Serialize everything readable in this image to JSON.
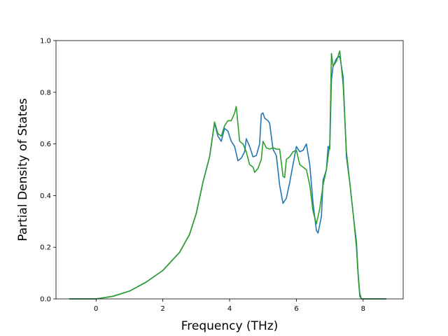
{
  "chart_data": {
    "type": "line",
    "title": "",
    "xlabel": "Frequency (THz)",
    "ylabel": "Partial Density of States",
    "xlim": [
      -1.2,
      9.2
    ],
    "ylim": [
      0.0,
      1.0
    ],
    "xticks": [
      0,
      2,
      4,
      6,
      8
    ],
    "yticks": [
      0.0,
      0.2,
      0.4,
      0.6,
      0.8,
      1.0
    ],
    "xtick_labels": [
      "0",
      "2",
      "4",
      "6",
      "8"
    ],
    "ytick_labels": [
      "0.0",
      "0.2",
      "0.4",
      "0.6",
      "0.8",
      "1.0"
    ],
    "grid": false,
    "legend": "none",
    "series": [
      {
        "color": "#1f77b4",
        "points": [
          [
            -0.8,
            0.0
          ],
          [
            0.0,
            0.0
          ],
          [
            0.5,
            0.01
          ],
          [
            1.0,
            0.03
          ],
          [
            1.5,
            0.065
          ],
          [
            2.0,
            0.11
          ],
          [
            2.5,
            0.18
          ],
          [
            2.8,
            0.25
          ],
          [
            3.0,
            0.33
          ],
          [
            3.2,
            0.45
          ],
          [
            3.4,
            0.55
          ],
          [
            3.55,
            0.68
          ],
          [
            3.65,
            0.63
          ],
          [
            3.75,
            0.61
          ],
          [
            3.85,
            0.66
          ],
          [
            3.95,
            0.65
          ],
          [
            4.05,
            0.61
          ],
          [
            4.15,
            0.59
          ],
          [
            4.25,
            0.535
          ],
          [
            4.35,
            0.545
          ],
          [
            4.45,
            0.57
          ],
          [
            4.5,
            0.62
          ],
          [
            4.6,
            0.59
          ],
          [
            4.7,
            0.55
          ],
          [
            4.8,
            0.555
          ],
          [
            4.9,
            0.6
          ],
          [
            4.95,
            0.715
          ],
          [
            5.0,
            0.72
          ],
          [
            5.05,
            0.7
          ],
          [
            5.15,
            0.69
          ],
          [
            5.2,
            0.68
          ],
          [
            5.3,
            0.58
          ],
          [
            5.4,
            0.555
          ],
          [
            5.5,
            0.44
          ],
          [
            5.6,
            0.37
          ],
          [
            5.7,
            0.39
          ],
          [
            5.8,
            0.45
          ],
          [
            5.9,
            0.52
          ],
          [
            6.0,
            0.59
          ],
          [
            6.1,
            0.57
          ],
          [
            6.2,
            0.575
          ],
          [
            6.3,
            0.6
          ],
          [
            6.4,
            0.52
          ],
          [
            6.5,
            0.37
          ],
          [
            6.6,
            0.265
          ],
          [
            6.65,
            0.255
          ],
          [
            6.75,
            0.32
          ],
          [
            6.8,
            0.46
          ],
          [
            6.9,
            0.5
          ],
          [
            6.95,
            0.59
          ],
          [
            7.0,
            0.58
          ],
          [
            7.05,
            0.85
          ],
          [
            7.1,
            0.9
          ],
          [
            7.2,
            0.93
          ],
          [
            7.3,
            0.94
          ],
          [
            7.4,
            0.86
          ],
          [
            7.5,
            0.55
          ],
          [
            7.6,
            0.45
          ],
          [
            7.7,
            0.33
          ],
          [
            7.8,
            0.22
          ],
          [
            7.85,
            0.1
          ],
          [
            7.9,
            0.02
          ],
          [
            7.95,
            0.0
          ],
          [
            8.7,
            0.0
          ]
        ]
      },
      {
        "color": "#2ca02c",
        "points": [
          [
            -0.8,
            0.0
          ],
          [
            0.0,
            0.0
          ],
          [
            0.5,
            0.01
          ],
          [
            1.0,
            0.03
          ],
          [
            1.5,
            0.065
          ],
          [
            2.0,
            0.11
          ],
          [
            2.5,
            0.18
          ],
          [
            2.8,
            0.25
          ],
          [
            3.0,
            0.33
          ],
          [
            3.2,
            0.45
          ],
          [
            3.4,
            0.55
          ],
          [
            3.55,
            0.685
          ],
          [
            3.65,
            0.64
          ],
          [
            3.75,
            0.63
          ],
          [
            3.85,
            0.67
          ],
          [
            3.95,
            0.69
          ],
          [
            4.05,
            0.69
          ],
          [
            4.15,
            0.72
          ],
          [
            4.2,
            0.745
          ],
          [
            4.3,
            0.61
          ],
          [
            4.4,
            0.6
          ],
          [
            4.5,
            0.57
          ],
          [
            4.6,
            0.52
          ],
          [
            4.7,
            0.51
          ],
          [
            4.75,
            0.49
          ],
          [
            4.85,
            0.505
          ],
          [
            4.95,
            0.54
          ],
          [
            5.0,
            0.61
          ],
          [
            5.1,
            0.585
          ],
          [
            5.2,
            0.58
          ],
          [
            5.3,
            0.585
          ],
          [
            5.4,
            0.58
          ],
          [
            5.5,
            0.58
          ],
          [
            5.6,
            0.475
          ],
          [
            5.65,
            0.47
          ],
          [
            5.7,
            0.54
          ],
          [
            5.8,
            0.55
          ],
          [
            5.9,
            0.57
          ],
          [
            6.0,
            0.575
          ],
          [
            6.1,
            0.52
          ],
          [
            6.3,
            0.5
          ],
          [
            6.4,
            0.44
          ],
          [
            6.5,
            0.34
          ],
          [
            6.6,
            0.29
          ],
          [
            6.7,
            0.35
          ],
          [
            6.8,
            0.44
          ],
          [
            6.9,
            0.5
          ],
          [
            7.0,
            0.6
          ],
          [
            7.05,
            0.95
          ],
          [
            7.1,
            0.9
          ],
          [
            7.2,
            0.92
          ],
          [
            7.3,
            0.96
          ],
          [
            7.4,
            0.83
          ],
          [
            7.5,
            0.57
          ],
          [
            7.6,
            0.45
          ],
          [
            7.7,
            0.33
          ],
          [
            7.8,
            0.2
          ],
          [
            7.85,
            0.09
          ],
          [
            7.9,
            0.01
          ],
          [
            7.95,
            0.0
          ],
          [
            8.7,
            0.0
          ]
        ]
      }
    ]
  }
}
